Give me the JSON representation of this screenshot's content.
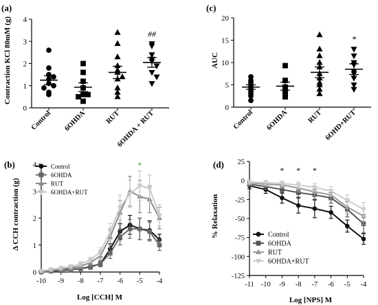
{
  "chart_data": [
    {
      "panel": "(a)",
      "type": "scatter",
      "ylabel": "Contraction KCl 80mM (g)",
      "ylim": [
        0,
        4
      ],
      "yticks": [
        0,
        1,
        2,
        3,
        4
      ],
      "categories": [
        "Control",
        "6OHDA",
        "RUT",
        "6OHDA + RUT"
      ],
      "markers": [
        "circle",
        "square",
        "triangle",
        "triangle-down"
      ],
      "points": [
        [
          2.6,
          1.8,
          1.5,
          1.4,
          1.3,
          1.1,
          1.0,
          0.9,
          0.7,
          0.6
        ],
        [
          2.0,
          1.6,
          1.2,
          0.9,
          0.6,
          0.6,
          0.5,
          0.3
        ],
        [
          3.4,
          2.9,
          2.3,
          1.9,
          1.7,
          1.6,
          1.4,
          1.3,
          0.9,
          0.7,
          0.5
        ],
        [
          2.9,
          2.8,
          2.4,
          2.2,
          2.1,
          1.9,
          1.6,
          1.4,
          1.1
        ]
      ],
      "means": [
        1.25,
        0.93,
        1.6,
        2.05
      ],
      "sem": [
        0.2,
        0.2,
        0.28,
        0.22
      ],
      "annotations": [
        "",
        "",
        "",
        "##"
      ]
    },
    {
      "panel": "(c)",
      "type": "scatter",
      "ylabel": "AUC",
      "ylim": [
        0,
        20
      ],
      "yticks": [
        0,
        5,
        10,
        15,
        20
      ],
      "categories": [
        "Control",
        "6OHDA",
        "RUT",
        "6OHD+RUT"
      ],
      "markers": [
        "circle",
        "square",
        "triangle",
        "triangle-down"
      ],
      "points": [
        [
          6.8,
          6.0,
          5.5,
          5.0,
          4.5,
          4.0,
          3.5,
          3.0,
          2.5,
          1.5
        ],
        [
          9.3,
          6.0,
          4.5,
          4.0,
          3.5,
          3.0,
          2.5,
          2.3
        ],
        [
          16.2,
          13.0,
          11.5,
          10.0,
          9.0,
          7.5,
          6.5,
          5.5,
          5.0,
          4.0,
          3.0
        ],
        [
          13.0,
          11.5,
          10.0,
          9.5,
          8.0,
          7.5,
          6.5,
          5.0,
          4.0
        ]
      ],
      "means": [
        4.5,
        4.7,
        7.8,
        8.5
      ],
      "sem": [
        0.5,
        0.9,
        1.2,
        1.2
      ],
      "annotations": [
        "",
        "",
        "",
        "*"
      ]
    },
    {
      "panel": "(b)",
      "type": "line",
      "xlabel": "Log [CCH] M",
      "ylabel": "Δ CCH contraction (g)",
      "xlim": [
        -10,
        -4
      ],
      "ylim": [
        0,
        4
      ],
      "xticks": [
        -10,
        -9,
        -8,
        -7,
        -6,
        -5,
        -4
      ],
      "yticks": [
        0,
        1,
        2,
        3,
        4
      ],
      "x": [
        -10,
        -9.5,
        -9,
        -8.5,
        -8,
        -7.5,
        -7,
        -6.5,
        -6,
        -5.5,
        -5,
        -4.5,
        -4
      ],
      "legend_position": "top-left",
      "series": [
        {
          "name": "Control",
          "marker": "circle",
          "color": "#111111",
          "values": [
            0.0,
            0.03,
            0.06,
            0.1,
            0.13,
            0.2,
            0.3,
            0.85,
            1.5,
            1.75,
            1.6,
            1.55,
            1.2
          ],
          "err": [
            0.03,
            0.04,
            0.05,
            0.06,
            0.07,
            0.08,
            0.1,
            0.2,
            0.3,
            0.35,
            0.4,
            0.35,
            0.2
          ]
        },
        {
          "name": "6OHDA",
          "marker": "square",
          "color": "#666666",
          "values": [
            0.0,
            0.03,
            0.05,
            0.08,
            0.12,
            0.18,
            0.3,
            0.7,
            1.3,
            1.6,
            1.6,
            1.5,
            1.0
          ],
          "err": [
            0.03,
            0.04,
            0.05,
            0.06,
            0.07,
            0.08,
            0.1,
            0.2,
            0.3,
            0.35,
            0.4,
            0.35,
            0.2
          ]
        },
        {
          "name": "RUT",
          "marker": "triangle",
          "color": "#8c8c8c",
          "values": [
            0.02,
            0.06,
            0.1,
            0.15,
            0.22,
            0.35,
            0.6,
            1.3,
            2.2,
            3.0,
            2.8,
            2.7,
            2.0
          ],
          "err": [
            0.04,
            0.05,
            0.06,
            0.07,
            0.08,
            0.1,
            0.15,
            0.3,
            0.45,
            0.55,
            0.6,
            0.5,
            0.4
          ]
        },
        {
          "name": "6OHDA+RUT",
          "marker": "triangle-down",
          "color": "#c8c8c8",
          "values": [
            0.04,
            0.1,
            0.15,
            0.2,
            0.3,
            0.45,
            0.75,
            1.5,
            2.4,
            2.9,
            3.2,
            3.1,
            2.1
          ],
          "err": [
            0.04,
            0.05,
            0.06,
            0.07,
            0.08,
            0.1,
            0.15,
            0.3,
            0.45,
            0.5,
            0.55,
            0.5,
            0.4
          ]
        }
      ],
      "annotations": [
        {
          "x": -5,
          "text": "*",
          "color": "#2ca02c"
        }
      ]
    },
    {
      "panel": "(d)",
      "type": "line",
      "xlabel": "Log [NPS] M",
      "ylabel": "% Relaxation",
      "xlim": [
        -11,
        -4
      ],
      "ylim": [
        -125,
        25
      ],
      "xticks": [
        -11,
        -10,
        -9,
        -8,
        -7,
        -6,
        -5,
        -4
      ],
      "yticks": [
        25,
        0,
        -25,
        -50,
        -75,
        -100,
        -125
      ],
      "x": [
        -11,
        -10,
        -9,
        -8,
        -7,
        -6,
        -5,
        -4
      ],
      "legend_position": "bottom-left",
      "series": [
        {
          "name": "Control",
          "marker": "circle",
          "color": "#111111",
          "values": [
            -7,
            -12,
            -23,
            -33,
            -37,
            -42,
            -60,
            -77
          ],
          "err": [
            4,
            5,
            7,
            10,
            12,
            8,
            8,
            7
          ]
        },
        {
          "name": "6OHDA",
          "marker": "square",
          "color": "#555555",
          "values": [
            -5,
            -8,
            -12,
            -16,
            -19,
            -23,
            -38,
            -57
          ],
          "err": [
            3,
            4,
            5,
            6,
            7,
            7,
            10,
            12
          ]
        },
        {
          "name": "RUT",
          "marker": "triangle",
          "color": "#9a9a9a",
          "values": [
            -3,
            -5,
            -6,
            -10,
            -15,
            -19,
            -35,
            -47
          ],
          "err": [
            3,
            3,
            4,
            5,
            6,
            7,
            9,
            11
          ]
        },
        {
          "name": "6OHDA+RUT",
          "marker": "triangle-down",
          "color": "#cccccc",
          "values": [
            -2,
            -3,
            -4,
            -6,
            -9,
            -14,
            -26,
            -38
          ],
          "err": [
            2,
            3,
            3,
            4,
            5,
            6,
            7,
            9
          ]
        }
      ],
      "annotations": [
        {
          "x": -9,
          "text": "*"
        },
        {
          "x": -8,
          "text": "*"
        },
        {
          "x": -7,
          "text": "*"
        }
      ]
    }
  ]
}
